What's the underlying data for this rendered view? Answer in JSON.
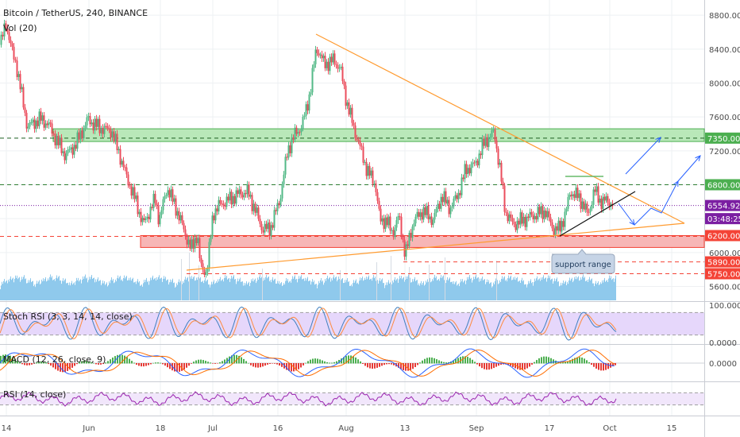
{
  "header": {
    "symbol_title": "Bitcoin / TetherUS, 240, BINANCE",
    "volume_label": "Vol (20)"
  },
  "annotations": {
    "support_range": "support range"
  },
  "colors": {
    "candle_up": "#53b987",
    "candle_down": "#eb4d5c",
    "triangle": "#ff9b30",
    "resistance_zone": "#4caf50",
    "support_zone": "#f44336",
    "price_line": "#7b1fa2",
    "arrow": "#2962ff",
    "volume": "#8fc9ec"
  },
  "chart_data": [
    {
      "type": "candlestick",
      "name": "main",
      "xlabel": "",
      "ylabel": "",
      "ylim": [
        5500,
        8900
      ],
      "x_ticks": [
        "14",
        "Jun",
        "18",
        "Jul",
        "16",
        "Aug",
        "13",
        "Sep",
        "17",
        "Oct",
        "15"
      ],
      "y_ticks": [
        5600,
        6000,
        6400,
        6800,
        7200,
        7600,
        8000,
        8400,
        8800
      ],
      "price_labels": [
        {
          "value": 7350,
          "text": "7350.00",
          "color": "#4caf50"
        },
        {
          "value": 6800,
          "text": "6800.00",
          "color": "#4caf50"
        },
        {
          "value": 6554.92,
          "text": "6554.92",
          "color": "#7b1fa2"
        },
        {
          "value": 6400,
          "text": "03:48:25",
          "color": "#7b1fa2"
        },
        {
          "value": 6200,
          "text": "6200.00",
          "color": "#f44336"
        },
        {
          "value": 5890,
          "text": "5890.00",
          "color": "#f44336"
        },
        {
          "value": 5750,
          "text": "5750.00",
          "color": "#f44336"
        }
      ],
      "zones": [
        {
          "name": "resistance-zone",
          "from": 7310,
          "to": 7460
        },
        {
          "name": "support-zone",
          "from": 6060,
          "to": 6200
        }
      ],
      "waypoints": [
        {
          "t": 0,
          "price": 8450
        },
        {
          "t": 7,
          "price": 8700
        },
        {
          "t": 16,
          "price": 8300
        },
        {
          "t": 20,
          "price": 8200
        },
        {
          "t": 34,
          "price": 7450
        },
        {
          "t": 50,
          "price": 7550
        },
        {
          "t": 60,
          "price": 7500
        },
        {
          "t": 72,
          "price": 7300
        },
        {
          "t": 82,
          "price": 7150
        },
        {
          "t": 95,
          "price": 7300
        },
        {
          "t": 110,
          "price": 7600
        },
        {
          "t": 125,
          "price": 7500
        },
        {
          "t": 140,
          "price": 7450
        },
        {
          "t": 152,
          "price": 7100
        },
        {
          "t": 160,
          "price": 6850
        },
        {
          "t": 170,
          "price": 6600
        },
        {
          "t": 180,
          "price": 6300
        },
        {
          "t": 195,
          "price": 6600
        },
        {
          "t": 200,
          "price": 6350
        },
        {
          "t": 210,
          "price": 6750
        },
        {
          "t": 222,
          "price": 6500
        },
        {
          "t": 230,
          "price": 6300
        },
        {
          "t": 240,
          "price": 6050
        },
        {
          "t": 248,
          "price": 6250
        },
        {
          "t": 252,
          "price": 5850
        },
        {
          "t": 260,
          "price": 5800
        },
        {
          "t": 268,
          "price": 6500
        },
        {
          "t": 278,
          "price": 6600
        },
        {
          "t": 290,
          "price": 6650
        },
        {
          "t": 302,
          "price": 6700
        },
        {
          "t": 312,
          "price": 6700
        },
        {
          "t": 320,
          "price": 6500
        },
        {
          "t": 330,
          "price": 6250
        },
        {
          "t": 340,
          "price": 6250
        },
        {
          "t": 352,
          "price": 6600
        },
        {
          "t": 362,
          "price": 7200
        },
        {
          "t": 372,
          "price": 7400
        },
        {
          "t": 380,
          "price": 7500
        },
        {
          "t": 390,
          "price": 7900
        },
        {
          "t": 398,
          "price": 8450
        },
        {
          "t": 408,
          "price": 8250
        },
        {
          "t": 420,
          "price": 8300
        },
        {
          "t": 428,
          "price": 8200
        },
        {
          "t": 436,
          "price": 7800
        },
        {
          "t": 446,
          "price": 7450
        },
        {
          "t": 456,
          "price": 7150
        },
        {
          "t": 462,
          "price": 6950
        },
        {
          "t": 472,
          "price": 6800
        },
        {
          "t": 478,
          "price": 6350
        },
        {
          "t": 486,
          "price": 6350
        },
        {
          "t": 494,
          "price": 6200
        },
        {
          "t": 502,
          "price": 6400
        },
        {
          "t": 510,
          "price": 5950
        },
        {
          "t": 520,
          "price": 6350
        },
        {
          "t": 532,
          "price": 6500
        },
        {
          "t": 545,
          "price": 6400
        },
        {
          "t": 556,
          "price": 6700
        },
        {
          "t": 566,
          "price": 6550
        },
        {
          "t": 576,
          "price": 6700
        },
        {
          "t": 586,
          "price": 7000
        },
        {
          "t": 598,
          "price": 7050
        },
        {
          "t": 610,
          "price": 7300
        },
        {
          "t": 622,
          "price": 7400
        },
        {
          "t": 630,
          "price": 6900
        },
        {
          "t": 636,
          "price": 6450
        },
        {
          "t": 646,
          "price": 6300
        },
        {
          "t": 656,
          "price": 6350
        },
        {
          "t": 666,
          "price": 6400
        },
        {
          "t": 676,
          "price": 6450
        },
        {
          "t": 686,
          "price": 6500
        },
        {
          "t": 696,
          "price": 6300
        },
        {
          "t": 704,
          "price": 6300
        },
        {
          "t": 712,
          "price": 6500
        },
        {
          "t": 718,
          "price": 6750
        },
        {
          "t": 726,
          "price": 6700
        },
        {
          "t": 734,
          "price": 6600
        },
        {
          "t": 740,
          "price": 6450
        },
        {
          "t": 748,
          "price": 6750
        },
        {
          "t": 756,
          "price": 6600
        },
        {
          "t": 764,
          "price": 6600
        },
        {
          "t": 772,
          "price": 6550
        }
      ]
    },
    {
      "type": "line",
      "name": "stoch-rsi",
      "title": "Stoch RSI (3, 3, 14, 14, close)",
      "ylim": [
        0,
        100
      ],
      "y_ticks": [
        {
          "value": 100,
          "text": "100.0000"
        },
        {
          "value": 0,
          "text": "0.0000"
        }
      ],
      "band": [
        20,
        80
      ]
    },
    {
      "type": "line",
      "name": "macd",
      "title": "MACD (12, 26, close, 9)",
      "ylim": [
        -1,
        1
      ],
      "y_ticks": [
        {
          "value": 0,
          "text": "0.0000"
        }
      ]
    },
    {
      "type": "line",
      "name": "rsi",
      "title": "RSI (14, close)",
      "ylim": [
        0,
        100
      ],
      "band": [
        30,
        70
      ]
    }
  ]
}
